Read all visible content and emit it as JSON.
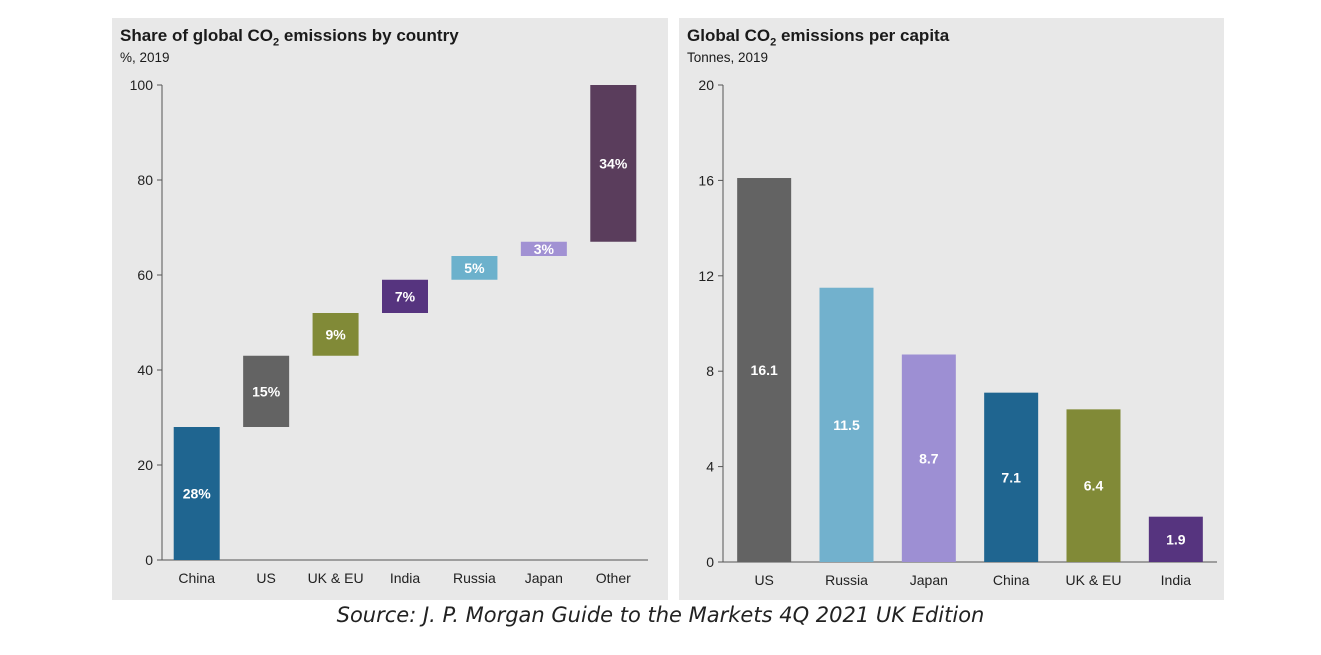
{
  "source": "Source: J. P. Morgan Guide to the Markets 4Q 2021 UK Edition",
  "chart_data": [
    {
      "type": "bar",
      "variant": "waterfall",
      "title_main": "Share of global CO",
      "title_sub": "2",
      "title_rest": " emissions by country",
      "subtitle": "%, 2019",
      "categories": [
        "China",
        "US",
        "UK & EU",
        "India",
        "Russia",
        "Japan",
        "Other"
      ],
      "values": [
        28,
        15,
        9,
        7,
        5,
        3,
        34
      ],
      "value_labels": [
        "28%",
        "15%",
        "9%",
        "7%",
        "5%",
        "3%",
        "34%"
      ],
      "colors": [
        "#1f6590",
        "#636363",
        "#818a37",
        "#56347f",
        "#6cb1cc",
        "#a191d3",
        "#5a3d5c"
      ],
      "ylim": [
        0,
        100
      ],
      "yticks": [
        0,
        20,
        40,
        60,
        80,
        100
      ],
      "grid": false
    },
    {
      "type": "bar",
      "title_main": "Global CO",
      "title_sub": "2",
      "title_rest": " emissions per capita",
      "subtitle": "Tonnes, 2019",
      "categories": [
        "US",
        "Russia",
        "Japan",
        "China",
        "UK & EU",
        "India"
      ],
      "values": [
        16.1,
        11.5,
        8.7,
        7.1,
        6.4,
        1.9
      ],
      "value_labels": [
        "16.1",
        "11.5",
        "8.7",
        "7.1",
        "6.4",
        "1.9"
      ],
      "colors": [
        "#636363",
        "#72b1cd",
        "#9d8fd3",
        "#1f6590",
        "#818a37",
        "#56347f"
      ],
      "ylim": [
        0,
        20
      ],
      "yticks": [
        0,
        4,
        8,
        12,
        16,
        20
      ],
      "grid": false
    }
  ]
}
